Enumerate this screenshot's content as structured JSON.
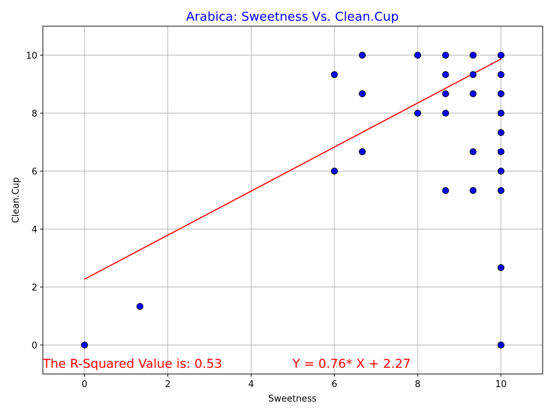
{
  "chart_data": {
    "type": "scatter",
    "title": "Arabica: Sweetness Vs. Clean.Cup",
    "xlabel": "Sweetness",
    "ylabel": "Clean.Cup",
    "xlim": [
      -1,
      11
    ],
    "ylim": [
      -1,
      11
    ],
    "xticks": [
      0,
      2,
      4,
      6,
      8,
      10
    ],
    "yticks": [
      0,
      2,
      4,
      6,
      8,
      10
    ],
    "grid": true,
    "points": [
      [
        0,
        0
      ],
      [
        1.33,
        1.33
      ],
      [
        6,
        9.33
      ],
      [
        6,
        6
      ],
      [
        6.67,
        10
      ],
      [
        6.67,
        8.67
      ],
      [
        6.67,
        6.67
      ],
      [
        8,
        10
      ],
      [
        8,
        8
      ],
      [
        8.67,
        10
      ],
      [
        8.67,
        9.33
      ],
      [
        8.67,
        8.67
      ],
      [
        8.67,
        8
      ],
      [
        8.67,
        5.33
      ],
      [
        9.33,
        10
      ],
      [
        9.33,
        9.33
      ],
      [
        9.33,
        8.67
      ],
      [
        9.33,
        6.67
      ],
      [
        9.33,
        5.33
      ],
      [
        10,
        10
      ],
      [
        10,
        9.33
      ],
      [
        10,
        8.67
      ],
      [
        10,
        8
      ],
      [
        10,
        7.33
      ],
      [
        10,
        6.67
      ],
      [
        10,
        6
      ],
      [
        10,
        5.33
      ],
      [
        10,
        2.67
      ],
      [
        10,
        0
      ]
    ],
    "regression": {
      "slope": 0.76,
      "intercept": 2.27,
      "x_range": [
        0,
        10
      ]
    },
    "annotations": {
      "r_squared": "The R-Squared Value is: 0.53",
      "equation": "Y = 0.76* X + 2.27"
    },
    "colors": {
      "title": "#0000ff",
      "points_fill": "#0000ff",
      "points_edge": "#000000",
      "line": "#ff0000",
      "annotation": "#ff0000"
    }
  }
}
